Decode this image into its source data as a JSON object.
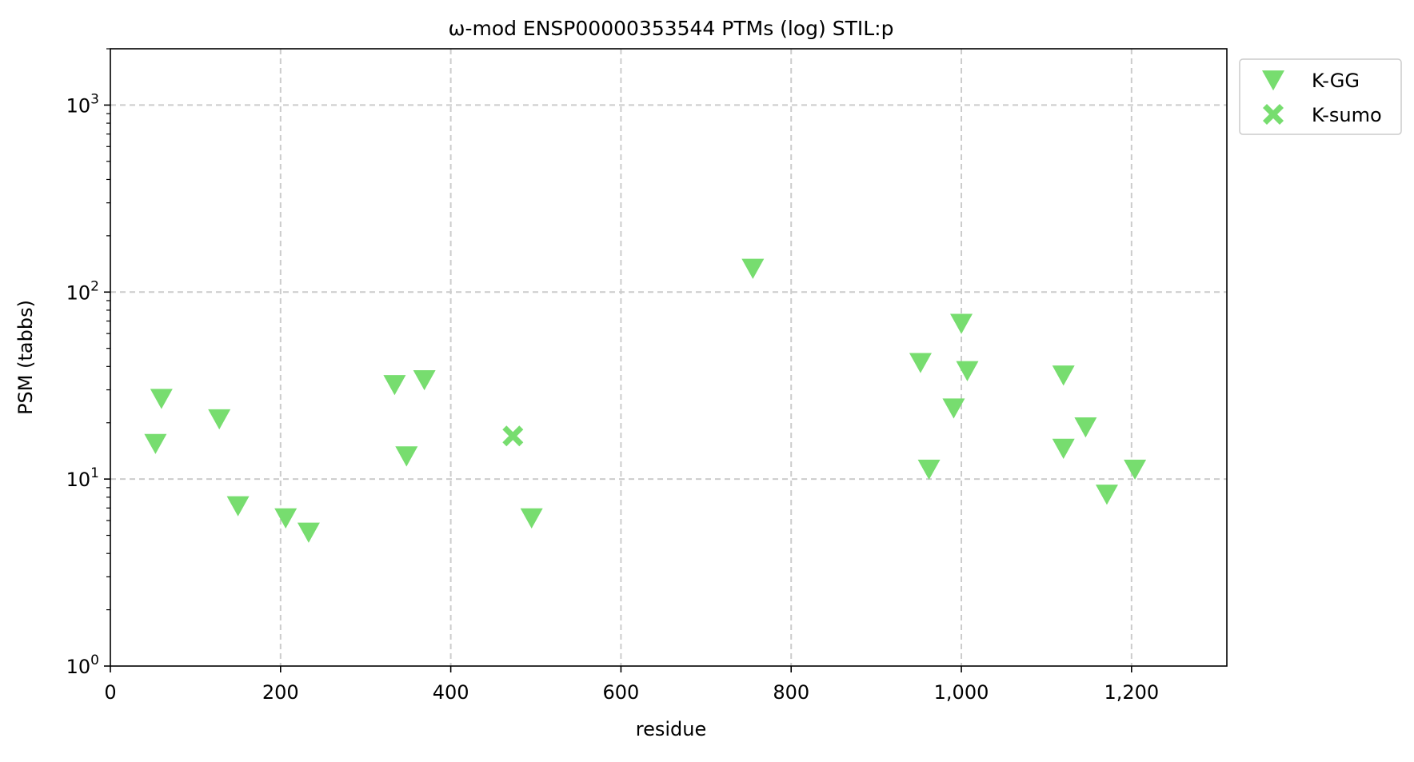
{
  "chart_data": {
    "type": "scatter",
    "title": "ω-mod ENSP00000353544 PTMs (log) STIL:p",
    "xlabel": "residue",
    "ylabel": "PSM (tabbs)",
    "xlim": [
      0,
      1312
    ],
    "ylim": [
      1,
      2000
    ],
    "yscale": "log",
    "grid": true,
    "legend_position": "outside upper right",
    "x_ticks": [
      {
        "value": 0,
        "label": "0"
      },
      {
        "value": 200,
        "label": "200"
      },
      {
        "value": 400,
        "label": "400"
      },
      {
        "value": 600,
        "label": "600"
      },
      {
        "value": 800,
        "label": "800"
      },
      {
        "value": 1000,
        "label": "1,000"
      },
      {
        "value": 1200,
        "label": "1,200"
      }
    ],
    "y_ticks": [
      {
        "value": 1,
        "base": "10",
        "exp": "0"
      },
      {
        "value": 10,
        "base": "10",
        "exp": "1"
      },
      {
        "value": 100,
        "base": "10",
        "exp": "2"
      },
      {
        "value": 1000,
        "base": "10",
        "exp": "3"
      }
    ],
    "series": [
      {
        "name": "K-GG",
        "marker": "triangle-down",
        "color": "#77dd6f",
        "points": [
          {
            "x": 53,
            "y": 15.5
          },
          {
            "x": 60,
            "y": 27
          },
          {
            "x": 128,
            "y": 21
          },
          {
            "x": 150,
            "y": 7.2
          },
          {
            "x": 206,
            "y": 6.2
          },
          {
            "x": 233,
            "y": 5.2
          },
          {
            "x": 334,
            "y": 32
          },
          {
            "x": 348,
            "y": 13.3
          },
          {
            "x": 369,
            "y": 34
          },
          {
            "x": 495,
            "y": 6.2
          },
          {
            "x": 755,
            "y": 134
          },
          {
            "x": 952,
            "y": 42
          },
          {
            "x": 962,
            "y": 11.3
          },
          {
            "x": 991,
            "y": 24
          },
          {
            "x": 1000,
            "y": 68
          },
          {
            "x": 1007,
            "y": 38
          },
          {
            "x": 1120,
            "y": 36
          },
          {
            "x": 1120,
            "y": 14.6
          },
          {
            "x": 1146,
            "y": 19
          },
          {
            "x": 1171,
            "y": 8.3
          },
          {
            "x": 1204,
            "y": 11.3
          }
        ]
      },
      {
        "name": "K-sumo",
        "marker": "x-filled",
        "color": "#77dd6f",
        "points": [
          {
            "x": 473,
            "y": 17
          }
        ]
      }
    ]
  }
}
